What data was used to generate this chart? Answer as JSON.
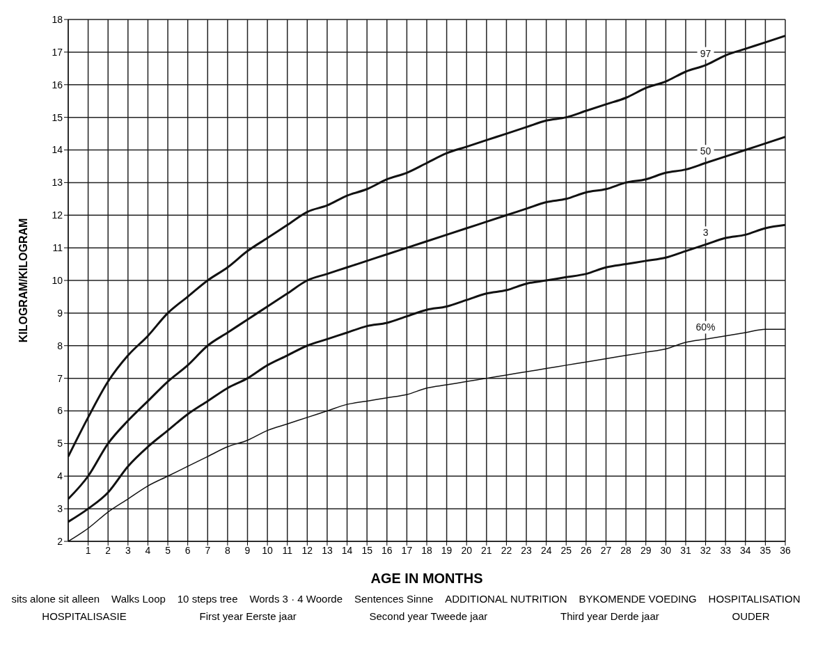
{
  "chart_data": {
    "type": "line",
    "xlabel": "AGE IN MONTHS",
    "ylabel": "KILOGRAM/KILOGRAM",
    "x": [
      0,
      1,
      2,
      3,
      4,
      5,
      6,
      7,
      8,
      9,
      10,
      11,
      12,
      13,
      14,
      15,
      16,
      17,
      18,
      19,
      20,
      21,
      22,
      23,
      24,
      25,
      26,
      27,
      28,
      29,
      30,
      31,
      32,
      33,
      34,
      35,
      36
    ],
    "series": [
      {
        "name": "97",
        "color": "#111111",
        "values": [
          4.6,
          5.8,
          6.9,
          7.7,
          8.3,
          9.0,
          9.5,
          10.0,
          10.4,
          10.9,
          11.3,
          11.7,
          12.1,
          12.3,
          12.6,
          12.8,
          13.1,
          13.3,
          13.6,
          13.9,
          14.1,
          14.3,
          14.5,
          14.7,
          14.9,
          15.0,
          15.2,
          15.4,
          15.6,
          15.9,
          16.1,
          16.4,
          16.6,
          16.9,
          17.1,
          17.3,
          17.5
        ]
      },
      {
        "name": "50",
        "color": "#111111",
        "values": [
          3.3,
          4.0,
          5.0,
          5.7,
          6.3,
          6.9,
          7.4,
          8.0,
          8.4,
          8.8,
          9.2,
          9.6,
          10.0,
          10.2,
          10.4,
          10.6,
          10.8,
          11.0,
          11.2,
          11.4,
          11.6,
          11.8,
          12.0,
          12.2,
          12.4,
          12.5,
          12.7,
          12.8,
          13.0,
          13.1,
          13.3,
          13.4,
          13.6,
          13.8,
          14.0,
          14.2,
          14.4
        ]
      },
      {
        "name": "3",
        "color": "#111111",
        "values": [
          2.6,
          3.0,
          3.5,
          4.3,
          4.9,
          5.4,
          5.9,
          6.3,
          6.7,
          7.0,
          7.4,
          7.7,
          8.0,
          8.2,
          8.4,
          8.6,
          8.7,
          8.9,
          9.1,
          9.2,
          9.4,
          9.6,
          9.7,
          9.9,
          10.0,
          10.1,
          10.2,
          10.4,
          10.5,
          10.6,
          10.7,
          10.9,
          11.1,
          11.3,
          11.4,
          11.6,
          11.7
        ]
      },
      {
        "name": "60%",
        "color": "#111111",
        "values": [
          2.0,
          2.4,
          2.9,
          3.3,
          3.7,
          4.0,
          4.3,
          4.6,
          4.9,
          5.1,
          5.4,
          5.6,
          5.8,
          6.0,
          6.2,
          6.3,
          6.4,
          6.5,
          6.7,
          6.8,
          6.9,
          7.0,
          7.1,
          7.2,
          7.3,
          7.4,
          7.5,
          7.6,
          7.7,
          7.8,
          7.9,
          8.1,
          8.2,
          8.3,
          8.4,
          8.5,
          8.5
        ]
      }
    ],
    "xlim": [
      0,
      36
    ],
    "xticks": [
      1,
      2,
      3,
      4,
      5,
      6,
      7,
      8,
      9,
      10,
      11,
      12,
      13,
      14,
      15,
      16,
      17,
      18,
      19,
      20,
      21,
      22,
      23,
      24,
      25,
      26,
      27,
      28,
      29,
      30,
      31,
      32,
      33,
      34,
      35,
      36
    ],
    "ylim": [
      2,
      18
    ],
    "yticks": [
      2,
      3,
      4,
      5,
      6,
      7,
      8,
      9,
      10,
      11,
      12,
      13,
      14,
      15,
      16,
      17,
      18
    ],
    "grid": true,
    "legend": false,
    "marker": "none",
    "line_style": "solid",
    "annotations": [
      "sits alone sit alleen",
      "Walks Loop",
      "10 steps tree",
      "Words 3 · 4 Woorde",
      "Sentences Sinne",
      "ADDITIONAL NUTRITION",
      "BYKOMENDE VOEDING",
      "HOSPITALISATION",
      "HOSPITALISASIE",
      "First year Eerste jaar",
      "Second year Tweede jaar",
      "Third year Derde jaar",
      "OUDER"
    ]
  }
}
